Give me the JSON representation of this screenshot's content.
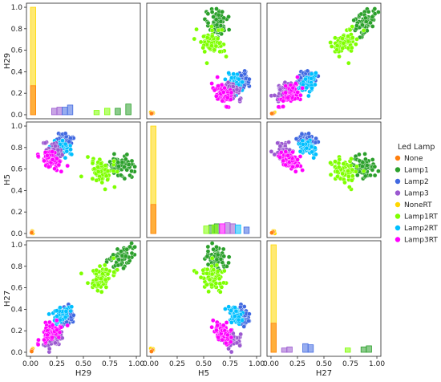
{
  "chart_data": {
    "type": "scatter",
    "variables": [
      "H29",
      "H5",
      "H27"
    ],
    "axis_range": [
      0,
      1
    ],
    "ticks": [
      0.0,
      0.2,
      0.4,
      0.6,
      0.8,
      1.0
    ],
    "tick_labels": [
      "0.0",
      "0.2",
      "0.4",
      "0.6",
      "0.8",
      "1.0"
    ],
    "x_tick_labels": [
      "0.00",
      "0.25",
      "0.50",
      "0.75",
      "1.00"
    ],
    "x_ticks": [
      0,
      0.25,
      0.5,
      0.75,
      1.0
    ],
    "legend": {
      "title": "Led Lamp",
      "placement": "right",
      "entries": [
        {
          "name": "None",
          "color": "#ff7f0e"
        },
        {
          "name": "Lamp1",
          "color": "#2ca02c"
        },
        {
          "name": "Lamp2",
          "color": "#4169e1"
        },
        {
          "name": "Lamp3",
          "color": "#9b59d0"
        },
        {
          "name": "NoneRT",
          "color": "#ffd700"
        },
        {
          "name": "Lamp1RT",
          "color": "#7fff00"
        },
        {
          "name": "Lamp2RT",
          "color": "#00bfff"
        },
        {
          "name": "Lamp3RT",
          "color": "#ff00ff"
        }
      ]
    },
    "clusters": [
      {
        "name": "Lamp1",
        "color": "#2ca02c",
        "H29": 0.86,
        "H5": 0.62,
        "H27": 0.88,
        "spread": 0.06
      },
      {
        "name": "Lamp1RT",
        "color": "#7fff00",
        "H29": 0.68,
        "H5": 0.58,
        "H27": 0.7,
        "spread": 0.06
      },
      {
        "name": "Lamp2",
        "color": "#4169e1",
        "H29": 0.33,
        "H5": 0.88,
        "H27": 0.33,
        "spread": 0.035
      },
      {
        "name": "Lamp2RT",
        "color": "#00bfff",
        "H29": 0.3,
        "H5": 0.8,
        "H27": 0.35,
        "spread": 0.035
      },
      {
        "name": "Lamp3",
        "color": "#9b59d0",
        "H29": 0.22,
        "H5": 0.76,
        "H27": 0.12,
        "spread": 0.045
      },
      {
        "name": "Lamp3RT",
        "color": "#ff00ff",
        "H29": 0.18,
        "H5": 0.68,
        "H27": 0.18,
        "spread": 0.045
      },
      {
        "name": "NoneRT",
        "color": "#ffd700",
        "H29": 0.02,
        "H5": 0.02,
        "H27": 0.02,
        "spread": 0.01
      },
      {
        "name": "None",
        "color": "#ff7f0e",
        "H29": 0.01,
        "H5": 0.01,
        "H27": 0.01,
        "spread": 0.005
      }
    ],
    "diagonal_histograms": {
      "H29": [
        {
          "name": "NoneRT",
          "color": "#ffd700",
          "bins": [
            [
              0.0,
              1.0
            ]
          ]
        },
        {
          "name": "None",
          "color": "#ff7f0e",
          "bins": [
            [
              0.0,
              0.27
            ]
          ]
        },
        {
          "name": "Lamp3",
          "color": "#9b59d0",
          "bins": [
            [
              0.2,
              0.06
            ],
            [
              0.25,
              0.07
            ]
          ]
        },
        {
          "name": "Lamp2",
          "color": "#4169e1",
          "bins": [
            [
              0.3,
              0.07
            ],
            [
              0.35,
              0.09
            ]
          ]
        },
        {
          "name": "Lamp1",
          "color": "#2ca02c",
          "bins": [
            [
              0.8,
              0.06
            ],
            [
              0.9,
              0.1
            ]
          ]
        },
        {
          "name": "Lamp1RT",
          "color": "#7fff00",
          "bins": [
            [
              0.6,
              0.04
            ],
            [
              0.7,
              0.06
            ]
          ]
        }
      ],
      "H5": [
        {
          "name": "NoneRT",
          "color": "#ffd700",
          "bins": [
            [
              0.0,
              1.0
            ]
          ]
        },
        {
          "name": "None",
          "color": "#ff7f0e",
          "bins": [
            [
              0.0,
              0.27
            ]
          ]
        },
        {
          "name": "Lamp1",
          "color": "#2ca02c",
          "bins": [
            [
              0.55,
              0.08
            ],
            [
              0.6,
              0.09
            ]
          ]
        },
        {
          "name": "Lamp1RT",
          "color": "#7fff00",
          "bins": [
            [
              0.5,
              0.07
            ],
            [
              0.58,
              0.08
            ]
          ]
        },
        {
          "name": "Lamp3",
          "color": "#9b59d0",
          "bins": [
            [
              0.7,
              0.1
            ],
            [
              0.75,
              0.09
            ]
          ]
        },
        {
          "name": "Lamp2RT",
          "color": "#00bfff",
          "bins": [
            [
              0.8,
              0.08
            ]
          ]
        },
        {
          "name": "Lamp2",
          "color": "#4169e1",
          "bins": [
            [
              0.88,
              0.06
            ]
          ]
        },
        {
          "name": "Lamp3RT",
          "color": "#ff00ff",
          "bins": [
            [
              0.65,
              0.09
            ]
          ]
        }
      ],
      "H27": [
        {
          "name": "NoneRT",
          "color": "#ffd700",
          "bins": [
            [
              0.0,
              1.0
            ]
          ]
        },
        {
          "name": "None",
          "color": "#ff7f0e",
          "bins": [
            [
              0.0,
              0.27
            ]
          ]
        },
        {
          "name": "Lamp3",
          "color": "#9b59d0",
          "bins": [
            [
              0.1,
              0.04
            ],
            [
              0.15,
              0.05
            ]
          ]
        },
        {
          "name": "Lamp2",
          "color": "#4169e1",
          "bins": [
            [
              0.3,
              0.08
            ],
            [
              0.35,
              0.07
            ]
          ]
        },
        {
          "name": "Lamp1RT",
          "color": "#7fff00",
          "bins": [
            [
              0.7,
              0.04
            ]
          ]
        },
        {
          "name": "Lamp1",
          "color": "#2ca02c",
          "bins": [
            [
              0.85,
              0.05
            ],
            [
              0.9,
              0.06
            ]
          ]
        }
      ]
    },
    "outliers": [
      {
        "color": "#ff00ff",
        "H29": 0.35,
        "H5": 0.63,
        "H27": 0.25
      }
    ]
  }
}
